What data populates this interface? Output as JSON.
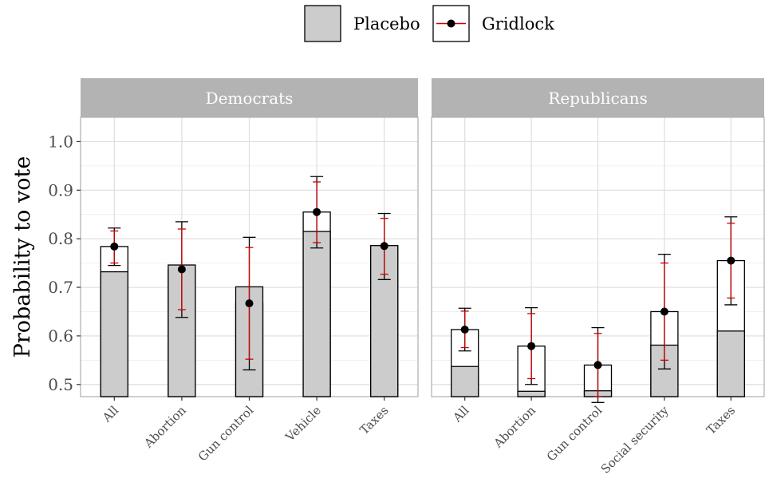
{
  "chart_data": {
    "type": "bar",
    "ylabel": "Probability to vote",
    "ylim": [
      0.475,
      1.05
    ],
    "yticks": [
      "0.5",
      "0.6",
      "0.7",
      "0.8",
      "0.9",
      "1.0"
    ],
    "legend": {
      "position": "top",
      "items": [
        {
          "label": "Placebo",
          "color": "#cccccc"
        },
        {
          "label": "Gridlock",
          "color": "#000000",
          "errorbar_color": "#cc0000"
        }
      ]
    },
    "grid": true,
    "panels": [
      {
        "title": "Democrats",
        "categories": [
          "All",
          "Abortion",
          "Gun control",
          "Vehicle",
          "Taxes"
        ],
        "placebo": [
          0.732,
          0.746,
          0.701,
          0.815,
          0.786
        ],
        "gridlock": [
          0.784,
          0.737,
          0.667,
          0.855,
          0.785
        ],
        "ci95_low": [
          0.745,
          0.638,
          0.53,
          0.781,
          0.716
        ],
        "ci95_high": [
          0.822,
          0.835,
          0.803,
          0.928,
          0.852
        ],
        "ci90_low": [
          0.75,
          0.654,
          0.552,
          0.792,
          0.727
        ],
        "ci90_high": [
          0.816,
          0.82,
          0.782,
          0.917,
          0.842
        ]
      },
      {
        "title": "Republicans",
        "categories": [
          "All",
          "Abortion",
          "Gun control",
          "Social security",
          "Taxes"
        ],
        "placebo": [
          0.537,
          0.486,
          0.487,
          0.581,
          0.61
        ],
        "gridlock": [
          0.613,
          0.579,
          0.54,
          0.65,
          0.755
        ],
        "ci95_low": [
          0.569,
          0.5,
          0.463,
          0.532,
          0.664
        ],
        "ci95_high": [
          0.657,
          0.658,
          0.617,
          0.768,
          0.845
        ],
        "ci90_low": [
          0.576,
          0.512,
          0.475,
          0.55,
          0.678
        ],
        "ci90_high": [
          0.651,
          0.646,
          0.605,
          0.75,
          0.832
        ]
      }
    ]
  }
}
